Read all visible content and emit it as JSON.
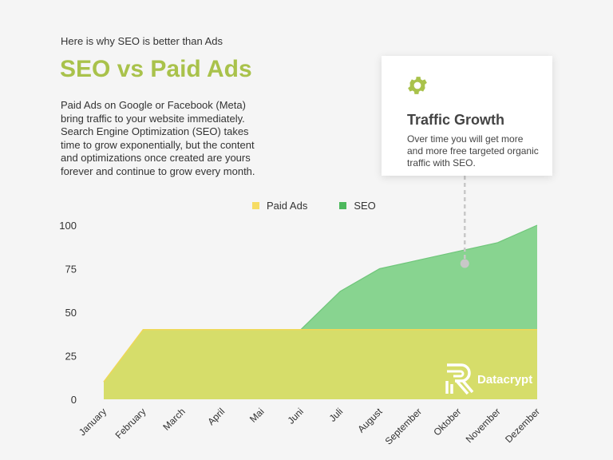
{
  "header": {
    "eyebrow": "Here is why SEO is better than Ads",
    "title": "SEO vs Paid Ads",
    "description": "Paid Ads on Google or Facebook (Meta) bring traffic to your website immediately. Search Engine Optimization (SEO) takes time to grow exponentially, but the content and optimizations once created are yours forever and continue to grow every month."
  },
  "callout": {
    "icon": "gear-icon",
    "title": "Traffic Growth",
    "text": "Over time you will get more and more free targeted organic traffic with SEO."
  },
  "brand": {
    "name": "Datacrypt",
    "icon": "datacrypt-logo-icon"
  },
  "colors": {
    "title": "#a9c24b",
    "seo": "#88d490",
    "paid_ads": "#d6dd6a",
    "legend_paid": "#f6dc63",
    "legend_seo": "#4cb85c",
    "connector": "#c8c8c8"
  },
  "chart_data": {
    "type": "area",
    "categories": [
      "January",
      "February",
      "March",
      "April",
      "Mai",
      "Juni",
      "Juli",
      "August",
      "September",
      "Oktober",
      "November",
      "Dezember"
    ],
    "series": [
      {
        "name": "Paid Ads",
        "values": [
          10,
          40,
          40,
          40,
          40,
          40,
          40,
          40,
          40,
          40,
          40,
          40
        ]
      },
      {
        "name": "SEO",
        "values": [
          10,
          40,
          40,
          40,
          40,
          40,
          62,
          75,
          80,
          85,
          90,
          100
        ]
      }
    ],
    "yticks": [
      0,
      25,
      50,
      75,
      100
    ],
    "ylim": [
      0,
      100
    ],
    "legend": "top",
    "grid": false,
    "annotation": {
      "category": "Oktober",
      "value": 78
    }
  }
}
